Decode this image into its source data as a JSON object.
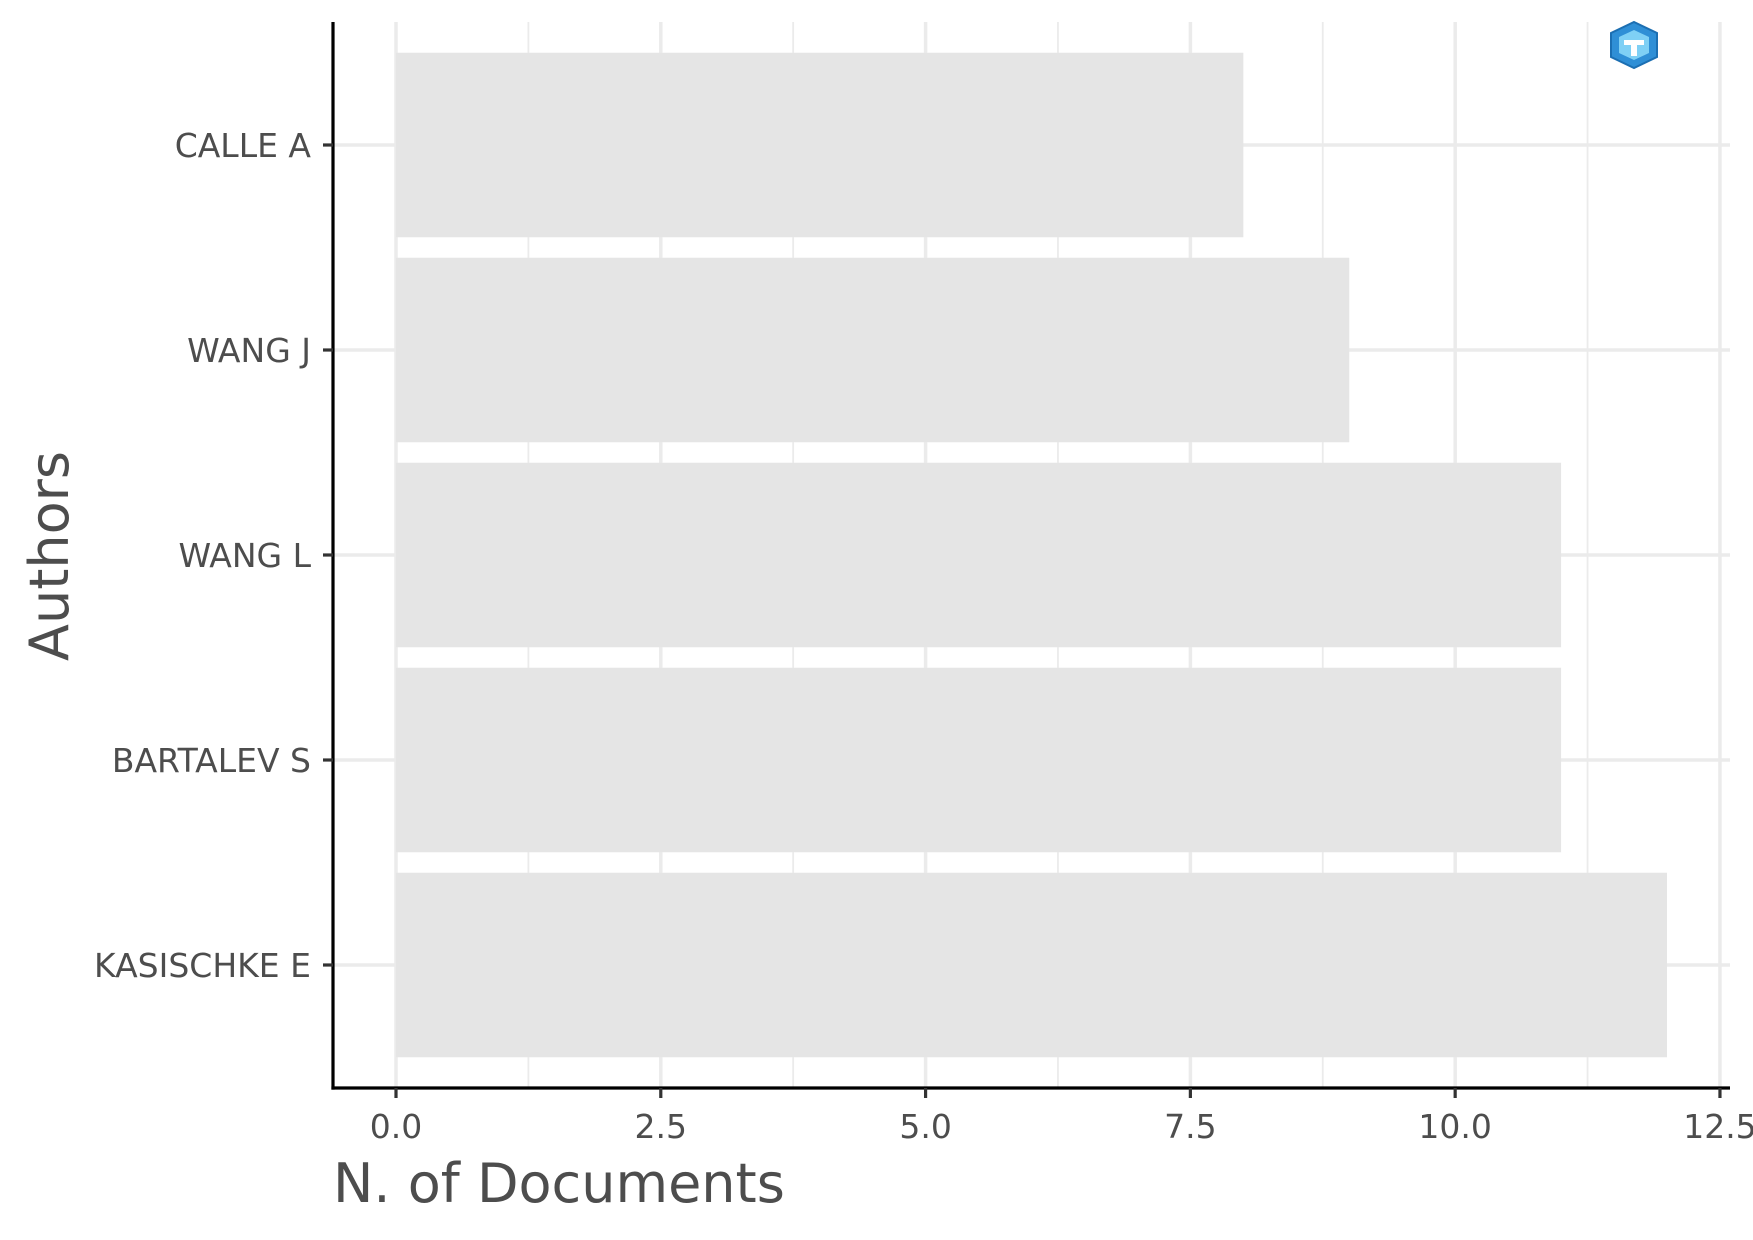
{
  "chart_data": {
    "type": "bar",
    "orientation": "horizontal",
    "categories": [
      "CALLE A",
      "WANG J",
      "WANG L",
      "BARTALEV S",
      "KASISCHKE E"
    ],
    "values": [
      8,
      9,
      11,
      11,
      12
    ],
    "xlabel": "N. of Documents",
    "ylabel": "Authors",
    "xlim": [
      0,
      12.5
    ],
    "xticks": [
      "0.0",
      "2.5",
      "5.0",
      "7.5",
      "10.0",
      "12.5"
    ],
    "grid": true,
    "legend": "none",
    "bar_color": "#e5e5e5",
    "grid_color": "#ebebeb",
    "text_color": "#4d4d4d",
    "axis_color": "#000000",
    "logo": "bibliometrix-logo"
  }
}
